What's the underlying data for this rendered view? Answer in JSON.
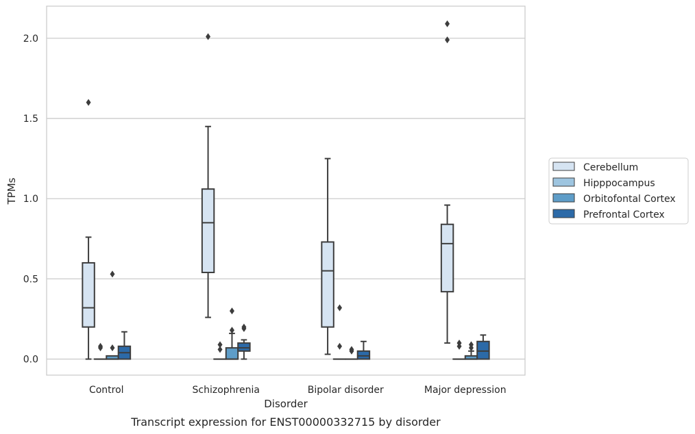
{
  "chart_data": {
    "type": "box",
    "caption": "Transcript expression for ENST00000332715 by disorder",
    "xlabel": "Disorder",
    "ylabel": "TPMs",
    "ylim": [
      -0.1,
      2.2
    ],
    "yticks": [
      0.0,
      0.5,
      1.0,
      1.5,
      2.0
    ],
    "ytick_labels": [
      "0.0",
      "0.5",
      "1.0",
      "1.5",
      "2.0"
    ],
    "grid": "horizontal",
    "legend_position": "right",
    "categories": [
      "Control",
      "Schizophrenia",
      "Bipolar disorder",
      "Major depression"
    ],
    "series": [
      {
        "name": "Cerebellum",
        "color": "#d6e4f2",
        "boxes": [
          {
            "whisker_low": 0.0,
            "q1": 0.2,
            "median": 0.32,
            "q3": 0.6,
            "whisker_high": 0.76,
            "outliers": [
              1.6
            ]
          },
          {
            "whisker_low": 0.26,
            "q1": 0.54,
            "median": 0.85,
            "q3": 1.06,
            "whisker_high": 1.45,
            "outliers": [
              2.01
            ]
          },
          {
            "whisker_low": 0.03,
            "q1": 0.2,
            "median": 0.55,
            "q3": 0.73,
            "whisker_high": 1.25,
            "outliers": []
          },
          {
            "whisker_low": 0.1,
            "q1": 0.42,
            "median": 0.72,
            "q3": 0.84,
            "whisker_high": 0.96,
            "outliers": [
              1.99,
              2.09
            ]
          }
        ]
      },
      {
        "name": "Hipppocampus",
        "color": "#9ec5e0",
        "boxes": [
          {
            "whisker_low": 0.0,
            "q1": 0.0,
            "median": 0.0,
            "q3": 0.0,
            "whisker_high": 0.0,
            "outliers": [
              0.07,
              0.08
            ]
          },
          {
            "whisker_low": 0.0,
            "q1": 0.0,
            "median": 0.0,
            "q3": 0.0,
            "whisker_high": 0.0,
            "outliers": [
              0.06,
              0.09
            ]
          },
          {
            "whisker_low": 0.0,
            "q1": 0.0,
            "median": 0.0,
            "q3": 0.0,
            "whisker_high": 0.0,
            "outliers": [
              0.32,
              0.08
            ]
          },
          {
            "whisker_low": 0.0,
            "q1": 0.0,
            "median": 0.0,
            "q3": 0.0,
            "whisker_high": 0.0,
            "outliers": [
              0.08,
              0.1
            ]
          }
        ]
      },
      {
        "name": "Orbitofontal Cortex",
        "color": "#5e9dc8",
        "boxes": [
          {
            "whisker_low": 0.0,
            "q1": 0.0,
            "median": 0.0,
            "q3": 0.02,
            "whisker_high": 0.02,
            "outliers": [
              0.07,
              0.53
            ]
          },
          {
            "whisker_low": 0.0,
            "q1": 0.0,
            "median": 0.0,
            "q3": 0.07,
            "whisker_high": 0.16,
            "outliers": [
              0.18,
              0.3
            ]
          },
          {
            "whisker_low": 0.0,
            "q1": 0.0,
            "median": 0.0,
            "q3": 0.0,
            "whisker_high": 0.0,
            "outliers": [
              0.05,
              0.06
            ]
          },
          {
            "whisker_low": 0.0,
            "q1": 0.0,
            "median": 0.0,
            "q3": 0.02,
            "whisker_high": 0.05,
            "outliers": [
              0.07,
              0.09
            ]
          }
        ]
      },
      {
        "name": "Prefrontal Cortex",
        "color": "#2c6aa8",
        "boxes": [
          {
            "whisker_low": 0.0,
            "q1": 0.0,
            "median": 0.04,
            "q3": 0.08,
            "whisker_high": 0.17,
            "outliers": []
          },
          {
            "whisker_low": 0.0,
            "q1": 0.05,
            "median": 0.07,
            "q3": 0.1,
            "whisker_high": 0.12,
            "outliers": [
              0.19,
              0.2
            ]
          },
          {
            "whisker_low": 0.0,
            "q1": 0.0,
            "median": 0.02,
            "q3": 0.05,
            "whisker_high": 0.11,
            "outliers": []
          },
          {
            "whisker_low": 0.0,
            "q1": 0.0,
            "median": 0.05,
            "q3": 0.11,
            "whisker_high": 0.15,
            "outliers": []
          }
        ]
      }
    ]
  }
}
